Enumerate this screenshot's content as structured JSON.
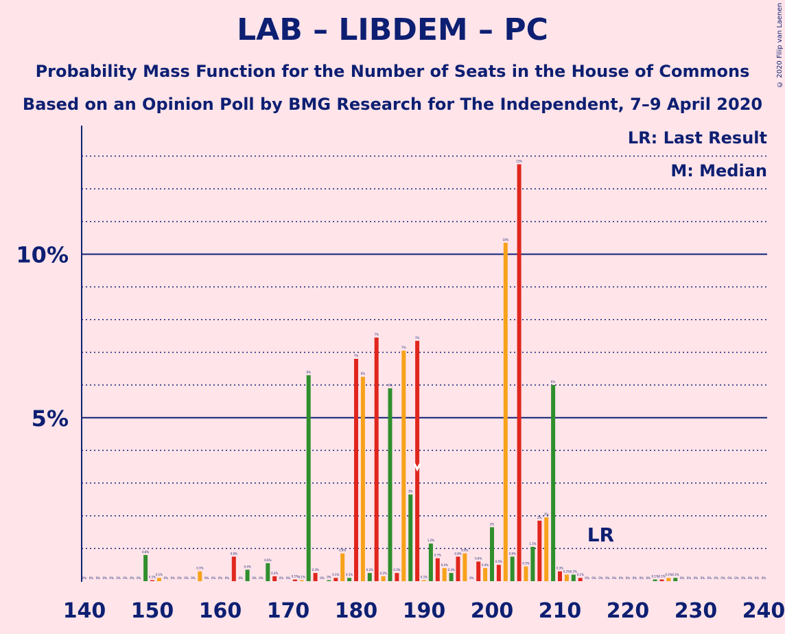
{
  "title": "LAB – LIBDEM – PC",
  "subtitle1": "Probability Mass Function for the Number of Seats in the House of Commons",
  "subtitle2": "Based on an Opinion Poll by BMG Research for The Independent, 7–9 April 2020",
  "copyright": "© 2020 Filip van Laenen",
  "legend": {
    "lr": "LR: Last Result",
    "m": "M: Median"
  },
  "markers": {
    "last_result_label": "LR",
    "last_result_seat": 216,
    "median_seat": 189
  },
  "colors": {
    "red": "#e0261d",
    "orange": "#f7a21b",
    "green": "#2f8f2d",
    "axis": "#0d1f72",
    "background": "#ffe4e9"
  },
  "chart_data": {
    "type": "bar",
    "title": "LAB – LIBDEM – PC",
    "xlabel": "",
    "ylabel": "",
    "xlim": [
      140,
      240
    ],
    "ylim": [
      0,
      14
    ],
    "x_ticks": [
      "140",
      "150",
      "160",
      "170",
      "180",
      "190",
      "200",
      "210",
      "220",
      "230",
      "240"
    ],
    "y_ticks": [
      {
        "value": 5,
        "label": "5%"
      },
      {
        "value": 10,
        "label": "10%"
      }
    ],
    "grid": "dotted horizontal lines at every 1%, solid at 5% and 10%",
    "bars": [
      {
        "seat": 140,
        "value": 0,
        "label": "0%"
      },
      {
        "seat": 141,
        "value": 0,
        "label": "0%"
      },
      {
        "seat": 142,
        "value": 0,
        "label": "0%"
      },
      {
        "seat": 143,
        "value": 0,
        "label": "0%"
      },
      {
        "seat": 144,
        "value": 0,
        "label": "0%"
      },
      {
        "seat": 145,
        "value": 0,
        "label": "0%"
      },
      {
        "seat": 146,
        "value": 0,
        "label": "0%"
      },
      {
        "seat": 147,
        "value": 0,
        "label": "0%"
      },
      {
        "seat": 148,
        "value": 0,
        "label": "0%"
      },
      {
        "seat": 149,
        "value": 0.8,
        "label": "0.8%"
      },
      {
        "seat": 150,
        "value": 0.03,
        "label": "0.1%"
      },
      {
        "seat": 151,
        "value": 0.1,
        "label": "0.1%"
      },
      {
        "seat": 152,
        "value": 0,
        "label": "0%"
      },
      {
        "seat": 153,
        "value": 0,
        "label": "0%"
      },
      {
        "seat": 154,
        "value": 0,
        "label": "0%"
      },
      {
        "seat": 155,
        "value": 0,
        "label": "0%"
      },
      {
        "seat": 156,
        "value": 0,
        "label": "0%"
      },
      {
        "seat": 157,
        "value": 0.3,
        "label": "0.3%"
      },
      {
        "seat": 158,
        "value": 0,
        "label": "0%"
      },
      {
        "seat": 159,
        "value": 0,
        "label": "0%"
      },
      {
        "seat": 160,
        "value": 0,
        "label": "0%"
      },
      {
        "seat": 161,
        "value": 0,
        "label": "0%"
      },
      {
        "seat": 162,
        "value": 0.75,
        "label": "0.8%"
      },
      {
        "seat": 163,
        "value": 0,
        "label": "0%"
      },
      {
        "seat": 164,
        "value": 0.35,
        "label": "0.4%"
      },
      {
        "seat": 165,
        "value": 0,
        "label": "0%"
      },
      {
        "seat": 166,
        "value": 0,
        "label": "0%"
      },
      {
        "seat": 167,
        "value": 0.55,
        "label": "0.6%"
      },
      {
        "seat": 168,
        "value": 0.15,
        "label": "0.2%"
      },
      {
        "seat": 169,
        "value": 0,
        "label": "0%"
      },
      {
        "seat": 170,
        "value": 0,
        "label": "0%"
      },
      {
        "seat": 171,
        "value": 0.05,
        "label": "0.1%"
      },
      {
        "seat": 172,
        "value": 0.03,
        "label": "0.1%"
      },
      {
        "seat": 173,
        "value": 6.3,
        "label": "6%"
      },
      {
        "seat": 174,
        "value": 0.25,
        "label": "0.3%"
      },
      {
        "seat": 175,
        "value": 0,
        "label": "0%"
      },
      {
        "seat": 176,
        "value": 0.03,
        "label": "0%"
      },
      {
        "seat": 177,
        "value": 0.1,
        "label": "0.1%"
      },
      {
        "seat": 178,
        "value": 0.85,
        "label": "0.9%"
      },
      {
        "seat": 179,
        "value": 0.1,
        "label": "0.1%"
      },
      {
        "seat": 180,
        "value": 6.8,
        "label": "7%"
      },
      {
        "seat": 181,
        "value": 6.25,
        "label": "6%"
      },
      {
        "seat": 182,
        "value": 0.25,
        "label": "0.2%"
      },
      {
        "seat": 183,
        "value": 7.45,
        "label": "7%"
      },
      {
        "seat": 184,
        "value": 0.15,
        "label": "0.2%"
      },
      {
        "seat": 185,
        "value": 5.9,
        "label": "6%"
      },
      {
        "seat": 186,
        "value": 0.25,
        "label": "0.3%"
      },
      {
        "seat": 187,
        "value": 7.05,
        "label": "7%"
      },
      {
        "seat": 188,
        "value": 2.65,
        "label": "3%"
      },
      {
        "seat": 189,
        "value": 7.35,
        "label": "7%"
      },
      {
        "seat": 190,
        "value": 0.03,
        "label": "0.1%"
      },
      {
        "seat": 191,
        "value": 1.15,
        "label": "1.2%"
      },
      {
        "seat": 192,
        "value": 0.7,
        "label": "0.7%"
      },
      {
        "seat": 193,
        "value": 0.4,
        "label": "0.4%"
      },
      {
        "seat": 194,
        "value": 0.25,
        "label": "0.3%"
      },
      {
        "seat": 195,
        "value": 0.75,
        "label": "0.8%"
      },
      {
        "seat": 196,
        "value": 0.85,
        "label": "0.9%"
      },
      {
        "seat": 197,
        "value": 0,
        "label": "0%"
      },
      {
        "seat": 198,
        "value": 0.6,
        "label": "0.6%"
      },
      {
        "seat": 199,
        "value": 0.4,
        "label": "0.4%"
      },
      {
        "seat": 200,
        "value": 1.65,
        "label": "2%"
      },
      {
        "seat": 201,
        "value": 0.5,
        "label": "0.5%"
      },
      {
        "seat": 202,
        "value": 10.35,
        "label": "10%"
      },
      {
        "seat": 203,
        "value": 0.75,
        "label": "0.8%"
      },
      {
        "seat": 204,
        "value": 12.75,
        "label": "13%"
      },
      {
        "seat": 205,
        "value": 0.45,
        "label": "0.5%"
      },
      {
        "seat": 206,
        "value": 1.05,
        "label": "1.1%"
      },
      {
        "seat": 207,
        "value": 1.85,
        "label": "2%"
      },
      {
        "seat": 208,
        "value": 1.95,
        "label": "2%"
      },
      {
        "seat": 209,
        "value": 6.0,
        "label": "6%"
      },
      {
        "seat": 210,
        "value": 0.3,
        "label": "0.3%"
      },
      {
        "seat": 211,
        "value": 0.2,
        "label": "0.2%"
      },
      {
        "seat": 212,
        "value": 0.2,
        "label": "0.2%"
      },
      {
        "seat": 213,
        "value": 0.1,
        "label": "0.1%"
      },
      {
        "seat": 214,
        "value": 0,
        "label": "0%"
      },
      {
        "seat": 215,
        "value": 0,
        "label": "0%"
      },
      {
        "seat": 216,
        "value": 0,
        "label": "0%"
      },
      {
        "seat": 217,
        "value": 0,
        "label": "0%"
      },
      {
        "seat": 218,
        "value": 0,
        "label": "0%"
      },
      {
        "seat": 219,
        "value": 0,
        "label": "0%"
      },
      {
        "seat": 220,
        "value": 0,
        "label": "0%"
      },
      {
        "seat": 221,
        "value": 0,
        "label": "0%"
      },
      {
        "seat": 222,
        "value": 0,
        "label": "0%"
      },
      {
        "seat": 223,
        "value": 0,
        "label": "0%"
      },
      {
        "seat": 224,
        "value": 0.05,
        "label": "0.1%"
      },
      {
        "seat": 225,
        "value": 0.05,
        "label": "0.1%"
      },
      {
        "seat": 226,
        "value": 0.1,
        "label": "0.1%"
      },
      {
        "seat": 227,
        "value": 0.1,
        "label": "0.1%"
      },
      {
        "seat": 228,
        "value": 0,
        "label": "0%"
      },
      {
        "seat": 229,
        "value": 0,
        "label": "0%"
      },
      {
        "seat": 230,
        "value": 0,
        "label": "0%"
      },
      {
        "seat": 231,
        "value": 0,
        "label": "0%"
      },
      {
        "seat": 232,
        "value": 0,
        "label": "0%"
      },
      {
        "seat": 233,
        "value": 0,
        "label": "0%"
      },
      {
        "seat": 234,
        "value": 0,
        "label": "0%"
      },
      {
        "seat": 235,
        "value": 0,
        "label": "0%"
      },
      {
        "seat": 236,
        "value": 0,
        "label": "0%"
      },
      {
        "seat": 237,
        "value": 0,
        "label": "0%"
      },
      {
        "seat": 238,
        "value": 0,
        "label": "0%"
      },
      {
        "seat": 239,
        "value": 0,
        "label": "0%"
      },
      {
        "seat": 240,
        "value": 0,
        "label": "0%"
      }
    ]
  }
}
